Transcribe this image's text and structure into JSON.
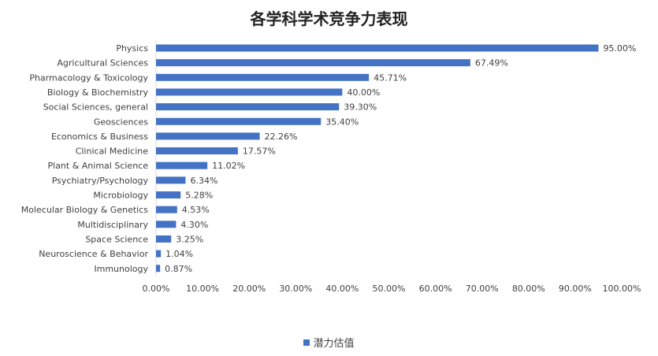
{
  "chart_data": {
    "type": "bar",
    "orientation": "horizontal",
    "title": "各学科学术竞争力表现",
    "categories": [
      "Physics",
      "Agricultural Sciences",
      "Pharmacology & Toxicology",
      "Biology & Biochemistry",
      "Social Sciences, general",
      "Geosciences",
      "Economics & Business",
      "Clinical Medicine",
      "Plant & Animal Science",
      "Psychiatry/Psychology",
      "Microbiology",
      "Molecular Biology & Genetics",
      "Multidisciplinary",
      "Space Science",
      "Neuroscience & Behavior",
      "Immunology"
    ],
    "series": [
      {
        "name": "潜力估值",
        "values": [
          95.0,
          67.49,
          45.71,
          40.0,
          39.3,
          35.4,
          22.26,
          17.57,
          11.02,
          6.34,
          5.28,
          4.53,
          4.3,
          3.25,
          1.04,
          0.87
        ],
        "labels": [
          "95.00%",
          "67.49%",
          "45.71%",
          "40.00%",
          "39.30%",
          "35.40%",
          "22.26%",
          "17.57%",
          "11.02%",
          "6.34%",
          "5.28%",
          "4.53%",
          "4.30%",
          "3.25%",
          "1.04%",
          "0.87%"
        ]
      }
    ],
    "xlim": [
      0,
      100
    ],
    "x_ticks": [
      "0.00%",
      "10.00%",
      "20.00%",
      "30.00%",
      "40.00%",
      "50.00%",
      "60.00%",
      "70.00%",
      "80.00%",
      "90.00%",
      "100.00%"
    ],
    "grid": false,
    "legend_position": "bottom",
    "color": "#4472C4"
  }
}
